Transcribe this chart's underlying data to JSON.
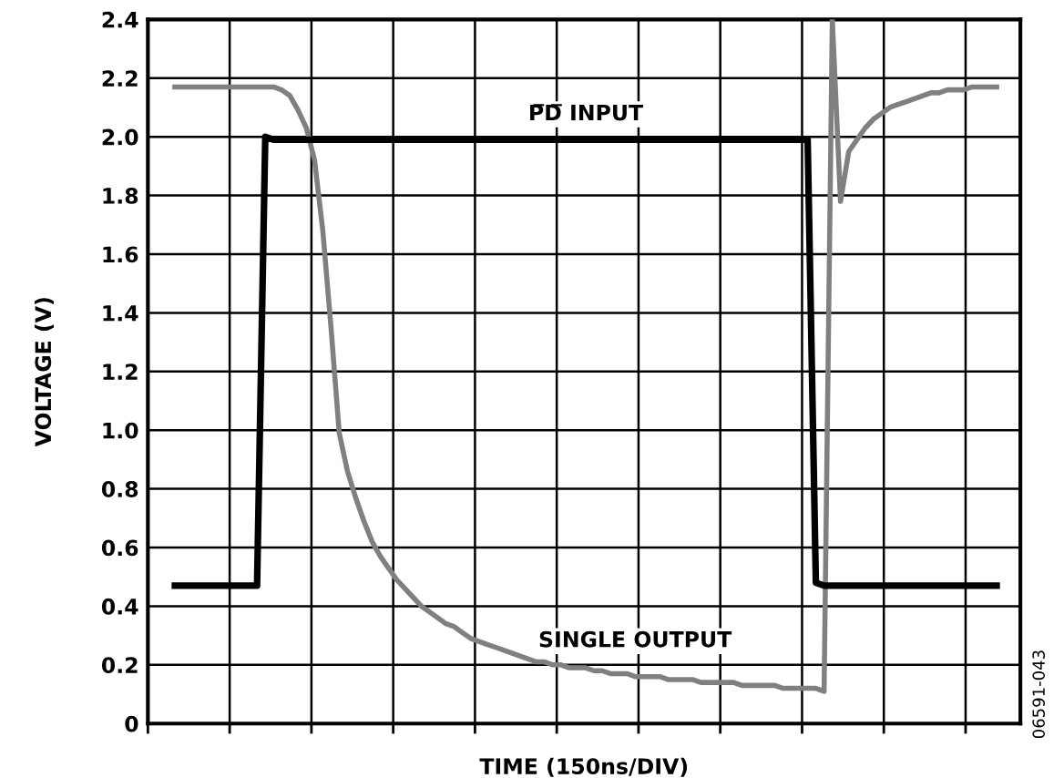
{
  "chart_data": {
    "type": "line",
    "xlabel": "TIME (150ns/DIV)",
    "ylabel": "VOLTAGE (V)",
    "categories": [
      null,
      null,
      null,
      null,
      null,
      null,
      null,
      null,
      null,
      null,
      null,
      null,
      null,
      null,
      null,
      null,
      null,
      null,
      null,
      null,
      null,
      null,
      null,
      null,
      null,
      null,
      null,
      null,
      null,
      null,
      null,
      null,
      null,
      null,
      null,
      null,
      null,
      null,
      null,
      null,
      null,
      null,
      null,
      null,
      null,
      null,
      null,
      null,
      null,
      null,
      null,
      null,
      null,
      null,
      null,
      null,
      null,
      null,
      null,
      null,
      null,
      null,
      null,
      null,
      null,
      null,
      null,
      null,
      null,
      null,
      null,
      null,
      null,
      null,
      null,
      null,
      null,
      null,
      null,
      null,
      null,
      null,
      null,
      null,
      null,
      null,
      null,
      null,
      null,
      null,
      null,
      null,
      null,
      null,
      null,
      null,
      null,
      null,
      null,
      null,
      null
    ],
    "ylim": [
      0,
      2.4
    ],
    "yticks": [
      0,
      {
        "value": 0.2,
        "label": "0.2"
      },
      {
        "value": 0.4,
        "label": "0.4"
      },
      {
        "value": 0.6,
        "label": "0.6"
      },
      {
        "value": 0.8,
        "label": "0.8"
      },
      {
        "value": 1.0,
        "label": "1.0"
      },
      {
        "value": 1.2,
        "label": "1.2"
      },
      {
        "value": 1.4,
        "label": "1.4"
      },
      {
        "value": 1.6,
        "label": "1.6"
      },
      {
        "value": 1.8,
        "label": "1.8"
      },
      {
        "value": 2.0,
        "label": "2.0"
      },
      {
        "value": 2.2,
        "label": "2.2"
      },
      {
        "value": 2.4,
        "label": "2.4"
      }
    ],
    "grid": true,
    "legend": false,
    "marker": "none",
    "line_style": "solid",
    "series": [
      {
        "name": "P̅D̅ INPUT",
        "color": "#000000",
        "values": [
          0.47,
          0.47,
          0.47,
          0.47,
          0.47,
          0.47,
          0.47,
          0.47,
          0.47,
          0.47,
          0.47,
          2.0,
          1.99,
          1.99,
          1.99,
          1.99,
          1.99,
          1.99,
          1.99,
          1.99,
          1.99,
          1.99,
          1.99,
          1.99,
          1.99,
          1.99,
          1.99,
          1.99,
          1.99,
          1.99,
          1.99,
          1.99,
          1.99,
          1.99,
          1.99,
          1.99,
          1.99,
          1.99,
          1.99,
          1.99,
          1.99,
          1.99,
          1.99,
          1.99,
          1.99,
          1.99,
          1.99,
          1.99,
          1.99,
          1.99,
          1.99,
          1.99,
          1.99,
          1.99,
          1.99,
          1.99,
          1.99,
          1.99,
          1.99,
          1.99,
          1.99,
          1.99,
          1.99,
          1.99,
          1.99,
          1.99,
          1.99,
          1.99,
          1.99,
          1.99,
          1.99,
          1.99,
          1.99,
          1.99,
          1.99,
          1.99,
          1.99,
          1.99,
          0.48,
          0.47,
          0.47,
          0.47,
          0.47,
          0.47,
          0.47,
          0.47,
          0.47,
          0.47,
          0.47,
          0.47,
          0.47,
          0.47,
          0.47,
          0.47,
          0.47,
          0.47,
          0.47,
          0.47,
          0.47,
          0.47,
          0.47
        ]
      },
      {
        "name": "SINGLE OUTPUT",
        "color": "#808080",
        "values": [
          2.17,
          2.17,
          2.17,
          2.17,
          2.17,
          2.17,
          2.17,
          2.17,
          2.17,
          2.17,
          2.17,
          2.17,
          2.17,
          2.16,
          2.14,
          2.09,
          2.03,
          1.92,
          1.68,
          1.35,
          0.99,
          0.86,
          0.77,
          0.69,
          0.62,
          0.57,
          0.53,
          0.49,
          0.46,
          0.43,
          0.4,
          0.38,
          0.36,
          0.34,
          0.33,
          0.31,
          0.29,
          0.28,
          0.27,
          0.26,
          0.25,
          0.24,
          0.23,
          0.22,
          0.21,
          0.21,
          0.2,
          0.2,
          0.19,
          0.19,
          0.19,
          0.18,
          0.18,
          0.17,
          0.17,
          0.17,
          0.16,
          0.16,
          0.16,
          0.16,
          0.15,
          0.15,
          0.15,
          0.15,
          0.14,
          0.14,
          0.14,
          0.14,
          0.14,
          0.13,
          0.13,
          0.13,
          0.13,
          0.13,
          0.12,
          0.12,
          0.12,
          0.12,
          0.12,
          0.11,
          2.4,
          1.78,
          1.95,
          1.99,
          2.03,
          2.06,
          2.08,
          2.1,
          2.11,
          2.12,
          2.13,
          2.14,
          2.15,
          2.15,
          2.16,
          2.16,
          2.16,
          2.17,
          2.17,
          2.17,
          2.17
        ]
      }
    ],
    "annotations": [
      "06591-043"
    ]
  }
}
